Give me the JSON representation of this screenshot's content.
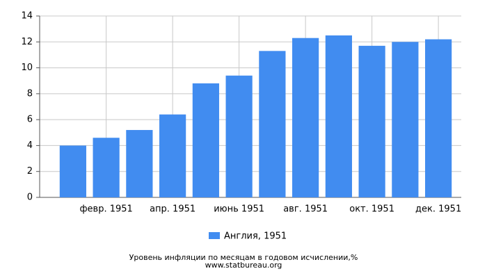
{
  "chart_data": {
    "type": "bar",
    "title": "Уровень инфляции по месяцам в годовом исчислении,%",
    "source": "www.statbureau.org",
    "categories": [
      null,
      "февр. 1951",
      null,
      "апр. 1951",
      null,
      "июнь 1951",
      null,
      "авг. 1951",
      null,
      "окт. 1951",
      null,
      "дек. 1951"
    ],
    "series": [
      {
        "name": "Англия, 1951",
        "color": "#418cf0",
        "values": [
          4.0,
          4.6,
          5.2,
          6.4,
          8.8,
          9.4,
          11.3,
          12.3,
          12.5,
          11.7,
          12.0,
          12.2
        ]
      }
    ],
    "ylim": [
      0,
      14
    ],
    "yticks": [
      0,
      2,
      4,
      6,
      8,
      10,
      12,
      14
    ],
    "grid": true
  }
}
